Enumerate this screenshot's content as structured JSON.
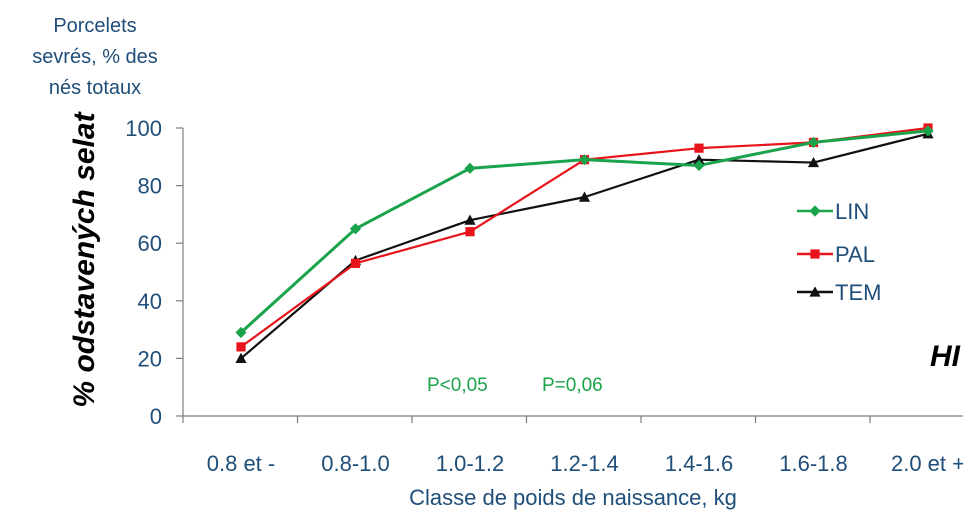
{
  "chart_data": {
    "type": "line",
    "categories": [
      "0.8 et -",
      "0.8-1.0",
      "1.0-1.2",
      "1.2-1.4",
      "1.4-1.6",
      "1.6-1.8",
      "2.0 et +"
    ],
    "ylabel_fr": "Porcelets sevrés, % des nés totaux",
    "ylabel_cz": "% odstavených selat",
    "xlabel": "Classe de poids de naissance, kg",
    "ylim": [
      0,
      100
    ],
    "yticks": [
      "0",
      "20",
      "40",
      "60",
      "80",
      "100"
    ],
    "grid": false,
    "legend_position": "right",
    "series": [
      {
        "name": "LIN",
        "color": "#1aa34a",
        "marker": "diamond",
        "values": [
          29,
          65,
          86,
          89,
          87,
          95,
          99
        ]
      },
      {
        "name": "PAL",
        "color": "#e8141b",
        "marker": "square",
        "values": [
          24,
          53,
          64,
          89,
          93,
          95,
          100
        ]
      },
      {
        "name": "TEM",
        "color": "#111111",
        "marker": "triangle",
        "values": [
          20,
          54,
          68,
          76,
          89,
          88,
          98
        ]
      }
    ],
    "annotations": [
      {
        "text": "P<0,05",
        "color": "#1aa34a"
      },
      {
        "text": "P=0,06",
        "color": "#1aa34a"
      }
    ],
    "corner_text": "HI"
  }
}
